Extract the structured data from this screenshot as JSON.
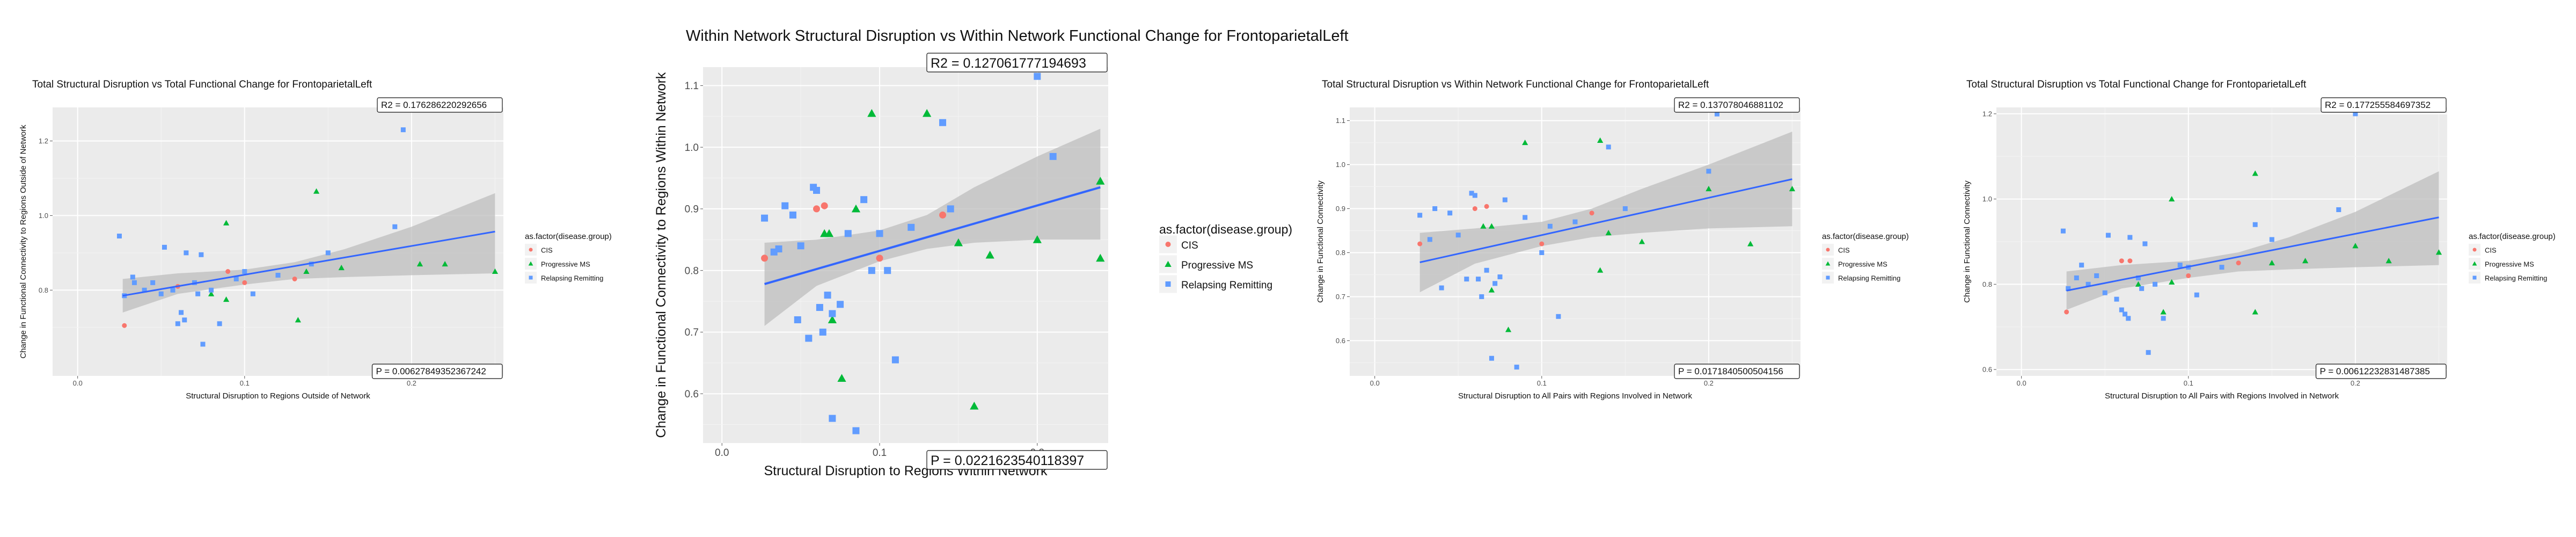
{
  "colors": {
    "panel_bg": "#ebebeb",
    "grid_major": "#ffffff",
    "grid_minor": "#f4f4f4",
    "ribbon": "#bdbdbd",
    "fit_line": "#3366ff",
    "CIS": "#f8766d",
    "Progressive MS": "#00ba38",
    "Relapsing Remitting": "#619cff"
  },
  "legend": {
    "title": "as.factor(disease.group)",
    "items": [
      {
        "label": "CIS",
        "shape": "circle"
      },
      {
        "label": "Progressive MS",
        "shape": "triangle"
      },
      {
        "label": "Relapsing Remitting",
        "shape": "square"
      }
    ]
  },
  "chart_data": [
    {
      "type": "scatter",
      "title": "Total Structural Disruption vs Total Functional Change for FrontoparietalLeft",
      "xlabel": "Structural Disruption to Regions Outside of Network",
      "ylabel": "Change in Functional Connectivity to Regions Outside of Network",
      "xlim": [
        -0.015,
        0.255
      ],
      "ylim": [
        0.57,
        1.29
      ],
      "x_ticks": [
        0.0,
        0.1,
        0.2
      ],
      "x_tick_labels": [
        "0.0",
        "0.1",
        "0.2"
      ],
      "y_ticks": [
        0.8,
        1.0,
        1.2
      ],
      "y_tick_labels": [
        "0.8",
        "1.0",
        "1.2"
      ],
      "r2_label": "R2 =  0.176286220292656",
      "p_label": "P =  0.00627849352367242",
      "fit": {
        "x0": 0.027,
        "x1": 0.25,
        "y0": 0.785,
        "y1": 0.957
      },
      "ribbon": {
        "x": [
          0.027,
          0.06,
          0.1,
          0.13,
          0.16,
          0.2,
          0.25
        ],
        "lower": [
          0.74,
          0.79,
          0.815,
          0.83,
          0.835,
          0.84,
          0.845
        ],
        "upper": [
          0.83,
          0.845,
          0.855,
          0.875,
          0.91,
          0.97,
          1.06
        ]
      },
      "series": [
        {
          "name": "CIS",
          "points": [
            [
              0.028,
              0.705
            ],
            [
              0.06,
              0.81
            ],
            [
              0.09,
              0.85
            ],
            [
              0.1,
              0.82
            ],
            [
              0.13,
              0.83
            ]
          ]
        },
        {
          "name": "Progressive MS",
          "points": [
            [
              0.08,
              0.79
            ],
            [
              0.089,
              0.98
            ],
            [
              0.089,
              0.775
            ],
            [
              0.132,
              0.72
            ],
            [
              0.137,
              0.85
            ],
            [
              0.143,
              1.065
            ],
            [
              0.158,
              0.86
            ],
            [
              0.205,
              0.87
            ],
            [
              0.22,
              0.87
            ],
            [
              0.25,
              0.85
            ]
          ]
        },
        {
          "name": "Relapsing Remitting",
          "points": [
            [
              0.025,
              0.945
            ],
            [
              0.028,
              0.785
            ],
            [
              0.033,
              0.835
            ],
            [
              0.034,
              0.82
            ],
            [
              0.04,
              0.8
            ],
            [
              0.045,
              0.82
            ],
            [
              0.05,
              0.79
            ],
            [
              0.052,
              0.915
            ],
            [
              0.057,
              0.8
            ],
            [
              0.06,
              0.71
            ],
            [
              0.062,
              0.74
            ],
            [
              0.064,
              0.72
            ],
            [
              0.065,
              0.9
            ],
            [
              0.07,
              0.82
            ],
            [
              0.072,
              0.79
            ],
            [
              0.074,
              0.895
            ],
            [
              0.075,
              0.655
            ],
            [
              0.08,
              0.8
            ],
            [
              0.085,
              0.71
            ],
            [
              0.095,
              0.83
            ],
            [
              0.1,
              0.85
            ],
            [
              0.105,
              0.79
            ],
            [
              0.12,
              0.84
            ],
            [
              0.14,
              0.87
            ],
            [
              0.15,
              0.9
            ],
            [
              0.19,
              0.97
            ],
            [
              0.195,
              1.23
            ]
          ]
        }
      ]
    },
    {
      "type": "scatter",
      "title": "Within Network Structural Disruption vs Within Network Functional Change for FrontoparietalLeft",
      "xlabel": "Structural Disruption to Regions Within Network",
      "ylabel": "Change in Functional Connectivity to Regions Within Network",
      "xlim": [
        -0.012,
        0.245
      ],
      "ylim": [
        0.52,
        1.13
      ],
      "x_ticks": [
        0.0,
        0.1,
        0.2
      ],
      "x_tick_labels": [
        "0.0",
        "0.1",
        "0.2"
      ],
      "y_ticks": [
        0.6,
        0.7,
        0.8,
        0.9,
        1.0,
        1.1
      ],
      "y_tick_labels": [
        "0.6",
        "0.7",
        "0.8",
        "0.9",
        "1.0",
        "1.1"
      ],
      "r2_label": "R2 =  0.127061777194693",
      "p_label": "P =  0.0221623540118397",
      "fit": {
        "x0": 0.027,
        "x1": 0.24,
        "y0": 0.778,
        "y1": 0.935
      },
      "ribbon": {
        "x": [
          0.027,
          0.06,
          0.1,
          0.13,
          0.16,
          0.2,
          0.24
        ],
        "lower": [
          0.71,
          0.775,
          0.815,
          0.835,
          0.845,
          0.85,
          0.85
        ],
        "upper": [
          0.845,
          0.85,
          0.865,
          0.89,
          0.935,
          0.985,
          1.03
        ]
      },
      "series": [
        {
          "name": "CIS",
          "points": [
            [
              0.027,
              0.82
            ],
            [
              0.06,
              0.9
            ],
            [
              0.065,
              0.905
            ],
            [
              0.1,
              0.82
            ],
            [
              0.14,
              0.89
            ]
          ]
        },
        {
          "name": "Progressive MS",
          "points": [
            [
              0.065,
              0.86
            ],
            [
              0.068,
              0.86
            ],
            [
              0.07,
              0.72
            ],
            [
              0.076,
              0.625
            ],
            [
              0.085,
              0.9
            ],
            [
              0.095,
              1.055
            ],
            [
              0.13,
              1.055
            ],
            [
              0.15,
              0.845
            ],
            [
              0.16,
              0.58
            ],
            [
              0.17,
              0.825
            ],
            [
              0.2,
              0.85
            ],
            [
              0.24,
              0.945
            ],
            [
              0.24,
              0.82
            ]
          ]
        },
        {
          "name": "Relapsing Remitting",
          "points": [
            [
              0.027,
              0.885
            ],
            [
              0.033,
              0.83
            ],
            [
              0.036,
              0.835
            ],
            [
              0.04,
              0.905
            ],
            [
              0.045,
              0.89
            ],
            [
              0.048,
              0.72
            ],
            [
              0.05,
              0.84
            ],
            [
              0.055,
              0.69
            ],
            [
              0.058,
              0.935
            ],
            [
              0.06,
              0.93
            ],
            [
              0.062,
              0.74
            ],
            [
              0.064,
              0.7
            ],
            [
              0.067,
              0.76
            ],
            [
              0.07,
              0.56
            ],
            [
              0.07,
              0.73
            ],
            [
              0.075,
              0.745
            ],
            [
              0.08,
              0.86
            ],
            [
              0.085,
              0.54
            ],
            [
              0.09,
              0.915
            ],
            [
              0.095,
              0.8
            ],
            [
              0.1,
              0.86
            ],
            [
              0.105,
              0.8
            ],
            [
              0.11,
              0.655
            ],
            [
              0.12,
              0.87
            ],
            [
              0.14,
              1.04
            ],
            [
              0.145,
              0.9
            ],
            [
              0.2,
              1.115
            ],
            [
              0.21,
              0.985
            ]
          ]
        }
      ]
    },
    {
      "type": "scatter",
      "title": "Total Structural Disruption vs Within Network Functional Change for FrontoparietalLeft",
      "xlabel": "Structural Disruption to All Pairs with Regions Involved in Network",
      "ylabel": "Change in Functional Connectivity",
      "xlim": [
        -0.015,
        0.255
      ],
      "ylim": [
        0.52,
        1.13
      ],
      "x_ticks": [
        0.0,
        0.1,
        0.2
      ],
      "x_tick_labels": [
        "0.0",
        "0.1",
        "0.2"
      ],
      "y_ticks": [
        0.6,
        0.7,
        0.8,
        0.9,
        1.0,
        1.1
      ],
      "y_tick_labels": [
        "0.6",
        "0.7",
        "0.8",
        "0.9",
        "1.0",
        "1.1"
      ],
      "r2_label": "R2 =  0.137078046881102",
      "p_label": "P =  0.0171840500504156",
      "fit": {
        "x0": 0.027,
        "x1": 0.25,
        "y0": 0.778,
        "y1": 0.967
      },
      "ribbon": {
        "x": [
          0.027,
          0.06,
          0.1,
          0.13,
          0.16,
          0.2,
          0.25
        ],
        "lower": [
          0.71,
          0.775,
          0.815,
          0.835,
          0.845,
          0.855,
          0.86
        ],
        "upper": [
          0.845,
          0.855,
          0.87,
          0.9,
          0.945,
          1.0,
          1.075
        ]
      },
      "series": [
        {
          "name": "CIS",
          "points": [
            [
              0.027,
              0.82
            ],
            [
              0.06,
              0.9
            ],
            [
              0.067,
              0.905
            ],
            [
              0.1,
              0.82
            ],
            [
              0.13,
              0.89
            ]
          ]
        },
        {
          "name": "Progressive MS",
          "points": [
            [
              0.065,
              0.86
            ],
            [
              0.07,
              0.86
            ],
            [
              0.07,
              0.715
            ],
            [
              0.08,
              0.625
            ],
            [
              0.09,
              1.05
            ],
            [
              0.135,
              1.055
            ],
            [
              0.14,
              0.845
            ],
            [
              0.135,
              0.76
            ],
            [
              0.16,
              0.825
            ],
            [
              0.2,
              0.945
            ],
            [
              0.225,
              0.82
            ],
            [
              0.25,
              0.945
            ]
          ]
        },
        {
          "name": "Relapsing Remitting",
          "points": [
            [
              0.027,
              0.885
            ],
            [
              0.033,
              0.83
            ],
            [
              0.036,
              0.9
            ],
            [
              0.04,
              0.72
            ],
            [
              0.045,
              0.89
            ],
            [
              0.05,
              0.84
            ],
            [
              0.055,
              0.74
            ],
            [
              0.058,
              0.935
            ],
            [
              0.06,
              0.93
            ],
            [
              0.062,
              0.74
            ],
            [
              0.064,
              0.7
            ],
            [
              0.067,
              0.76
            ],
            [
              0.07,
              0.56
            ],
            [
              0.072,
              0.73
            ],
            [
              0.075,
              0.745
            ],
            [
              0.078,
              0.92
            ],
            [
              0.085,
              0.54
            ],
            [
              0.09,
              0.88
            ],
            [
              0.1,
              0.8
            ],
            [
              0.105,
              0.86
            ],
            [
              0.11,
              0.655
            ],
            [
              0.12,
              0.87
            ],
            [
              0.14,
              1.04
            ],
            [
              0.15,
              0.9
            ],
            [
              0.2,
              0.985
            ],
            [
              0.205,
              1.115
            ]
          ]
        }
      ]
    },
    {
      "type": "scatter",
      "title": "Total Structural Disruption vs Total Functional Change for FrontoparietalLeft",
      "xlabel": "Structural Disruption to All Pairs with Regions Involved in Network",
      "ylabel": "Change in Functional Connectivity",
      "xlim": [
        -0.015,
        0.255
      ],
      "ylim": [
        0.585,
        1.215
      ],
      "x_ticks": [
        0.0,
        0.1,
        0.2
      ],
      "x_tick_labels": [
        "0.0",
        "0.1",
        "0.2"
      ],
      "y_ticks": [
        0.6,
        0.8,
        1.0,
        1.2
      ],
      "y_tick_labels": [
        "0.6",
        "0.8",
        "1.0",
        "1.2"
      ],
      "r2_label": "R2 =  0.177255584697352",
      "p_label": "P =  0.00612232831487385",
      "fit": {
        "x0": 0.027,
        "x1": 0.25,
        "y0": 0.785,
        "y1": 0.957
      },
      "ribbon": {
        "x": [
          0.027,
          0.06,
          0.1,
          0.13,
          0.16,
          0.2,
          0.25
        ],
        "lower": [
          0.74,
          0.79,
          0.815,
          0.83,
          0.835,
          0.84,
          0.845
        ],
        "upper": [
          0.83,
          0.845,
          0.855,
          0.875,
          0.91,
          0.97,
          1.065
        ]
      },
      "series": [
        {
          "name": "CIS",
          "points": [
            [
              0.027,
              0.735
            ],
            [
              0.06,
              0.855
            ],
            [
              0.065,
              0.855
            ],
            [
              0.1,
              0.82
            ],
            [
              0.13,
              0.85
            ]
          ]
        },
        {
          "name": "Progressive MS",
          "points": [
            [
              0.07,
              0.8
            ],
            [
              0.085,
              0.735
            ],
            [
              0.09,
              1.0
            ],
            [
              0.09,
              0.805
            ],
            [
              0.14,
              1.06
            ],
            [
              0.14,
              0.735
            ],
            [
              0.15,
              0.85
            ],
            [
              0.17,
              0.855
            ],
            [
              0.2,
              0.89
            ],
            [
              0.22,
              0.855
            ],
            [
              0.25,
              0.875
            ]
          ]
        },
        {
          "name": "Relapsing Remitting",
          "points": [
            [
              0.025,
              0.925
            ],
            [
              0.028,
              0.79
            ],
            [
              0.033,
              0.815
            ],
            [
              0.036,
              0.845
            ],
            [
              0.04,
              0.8
            ],
            [
              0.045,
              0.82
            ],
            [
              0.05,
              0.78
            ],
            [
              0.052,
              0.915
            ],
            [
              0.057,
              0.765
            ],
            [
              0.06,
              0.74
            ],
            [
              0.062,
              0.73
            ],
            [
              0.064,
              0.72
            ],
            [
              0.065,
              0.91
            ],
            [
              0.07,
              0.815
            ],
            [
              0.072,
              0.79
            ],
            [
              0.074,
              0.895
            ],
            [
              0.076,
              0.64
            ],
            [
              0.08,
              0.8
            ],
            [
              0.085,
              0.72
            ],
            [
              0.095,
              0.845
            ],
            [
              0.1,
              0.84
            ],
            [
              0.105,
              0.775
            ],
            [
              0.12,
              0.84
            ],
            [
              0.14,
              0.94
            ],
            [
              0.15,
              0.905
            ],
            [
              0.19,
              0.975
            ],
            [
              0.2,
              1.2
            ]
          ]
        }
      ]
    }
  ]
}
